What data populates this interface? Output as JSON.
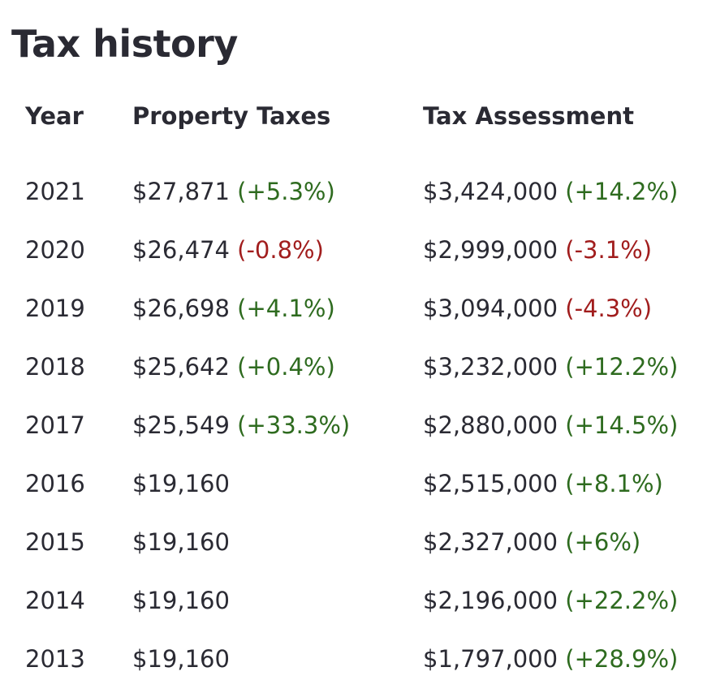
{
  "title": "Tax history",
  "headers": {
    "year": "Year",
    "property_taxes": "Property Taxes",
    "tax_assessment": "Tax Assessment"
  },
  "colors": {
    "increase": "#2e6b1f",
    "decrease": "#a11d1d",
    "text": "#2a2a33"
  },
  "rows": [
    {
      "year": "2021",
      "tax": "$27,871",
      "tax_change": "(+5.3%)",
      "tax_dir": "up",
      "assessment": "$3,424,000",
      "assessment_change": "(+14.2%)",
      "assessment_dir": "up"
    },
    {
      "year": "2020",
      "tax": "$26,474",
      "tax_change": "(-0.8%)",
      "tax_dir": "down",
      "assessment": "$2,999,000",
      "assessment_change": "(-3.1%)",
      "assessment_dir": "down"
    },
    {
      "year": "2019",
      "tax": "$26,698",
      "tax_change": "(+4.1%)",
      "tax_dir": "up",
      "assessment": "$3,094,000",
      "assessment_change": "(-4.3%)",
      "assessment_dir": "down"
    },
    {
      "year": "2018",
      "tax": "$25,642",
      "tax_change": "(+0.4%)",
      "tax_dir": "up",
      "assessment": "$3,232,000",
      "assessment_change": "(+12.2%)",
      "assessment_dir": "up"
    },
    {
      "year": "2017",
      "tax": "$25,549",
      "tax_change": "(+33.3%)",
      "tax_dir": "up",
      "assessment": "$2,880,000",
      "assessment_change": "(+14.5%)",
      "assessment_dir": "up"
    },
    {
      "year": "2016",
      "tax": "$19,160",
      "tax_change": "",
      "tax_dir": "",
      "assessment": "$2,515,000",
      "assessment_change": "(+8.1%)",
      "assessment_dir": "up"
    },
    {
      "year": "2015",
      "tax": "$19,160",
      "tax_change": "",
      "tax_dir": "",
      "assessment": "$2,327,000",
      "assessment_change": "(+6%)",
      "assessment_dir": "up"
    },
    {
      "year": "2014",
      "tax": "$19,160",
      "tax_change": "",
      "tax_dir": "",
      "assessment": "$2,196,000",
      "assessment_change": "(+22.2%)",
      "assessment_dir": "up"
    },
    {
      "year": "2013",
      "tax": "$19,160",
      "tax_change": "",
      "tax_dir": "",
      "assessment": "$1,797,000",
      "assessment_change": "(+28.9%)",
      "assessment_dir": "up"
    }
  ]
}
